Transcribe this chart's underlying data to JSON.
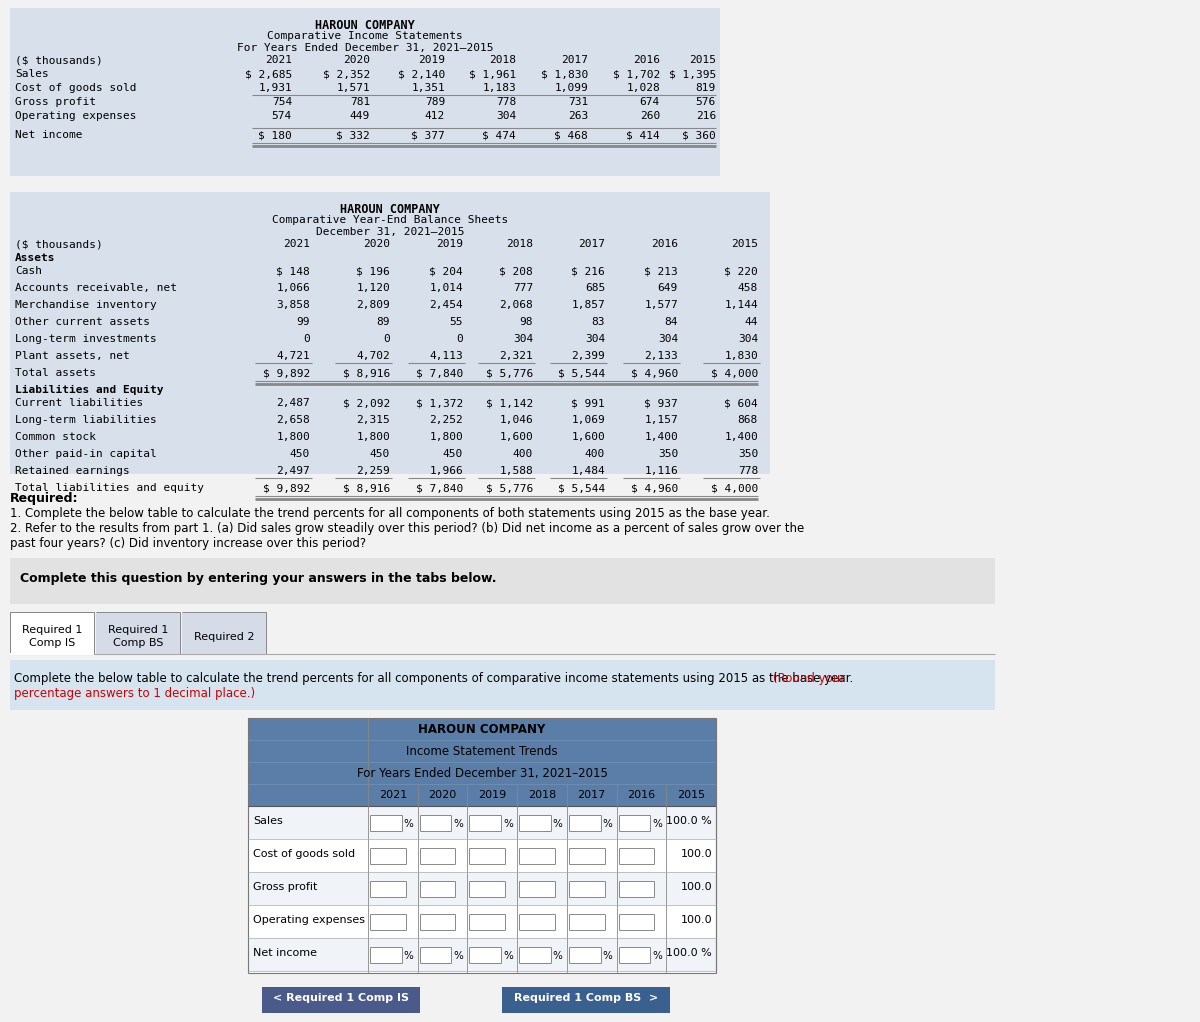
{
  "is_title1": "HAROUN COMPANY",
  "is_title2": "Comparative Income Statements",
  "is_title3": "For Years Ended December 31, 2021–2015",
  "is_header_label": "($ thousands)",
  "is_years": [
    "2021",
    "2020",
    "2019",
    "2018",
    "2017",
    "2016",
    "2015"
  ],
  "is_rows": [
    {
      "label": "Sales",
      "values": [
        "$ 2,685",
        "$ 2,352",
        "$ 2,140",
        "$ 1,961",
        "$ 1,830",
        "$ 1,702",
        "$ 1,395"
      ],
      "line_above": false,
      "double_below": false,
      "dollar": true
    },
    {
      "label": "Cost of goods sold",
      "values": [
        "1,931",
        "1,571",
        "1,351",
        "1,183",
        "1,099",
        "1,028",
        "819"
      ],
      "line_above": false,
      "double_below": false,
      "dollar": false
    },
    {
      "label": "Gross profit",
      "values": [
        "754",
        "781",
        "789",
        "778",
        "731",
        "674",
        "576"
      ],
      "line_above": true,
      "double_below": false,
      "dollar": false
    },
    {
      "label": "Operating expenses",
      "values": [
        "574",
        "449",
        "412",
        "304",
        "263",
        "260",
        "216"
      ],
      "line_above": false,
      "double_below": false,
      "dollar": false
    },
    {
      "label": "Net income",
      "values": [
        "$ 180",
        "$ 332",
        "$ 377",
        "$ 474",
        "$ 468",
        "$ 414",
        "$ 360"
      ],
      "line_above": true,
      "double_below": true,
      "dollar": true
    }
  ],
  "bs_title1": "HAROUN COMPANY",
  "bs_title2": "Comparative Year-End Balance Sheets",
  "bs_title3": "December 31, 2021–2015",
  "bs_header_label": "($ thousands)",
  "bs_years": [
    "2021",
    "2020",
    "2019",
    "2018",
    "2017",
    "2016",
    "2015"
  ],
  "bs_rows": [
    {
      "label": "Assets",
      "values": [
        "",
        "",
        "",
        "",
        "",
        "",
        ""
      ],
      "bold": true,
      "single_below": false,
      "double_below": false
    },
    {
      "label": "Cash",
      "values": [
        "$ 148",
        "$ 196",
        "$ 204",
        "$ 208",
        "$ 216",
        "$ 213",
        "$ 220"
      ],
      "bold": false,
      "single_below": false,
      "double_below": false
    },
    {
      "label": "Accounts receivable, net",
      "values": [
        "1,066",
        "1,120",
        "1,014",
        "777",
        "685",
        "649",
        "458"
      ],
      "bold": false,
      "single_below": false,
      "double_below": false
    },
    {
      "label": "Merchandise inventory",
      "values": [
        "3,858",
        "2,809",
        "2,454",
        "2,068",
        "1,857",
        "1,577",
        "1,144"
      ],
      "bold": false,
      "single_below": false,
      "double_below": false
    },
    {
      "label": "Other current assets",
      "values": [
        "99",
        "89",
        "55",
        "98",
        "83",
        "84",
        "44"
      ],
      "bold": false,
      "single_below": false,
      "double_below": false
    },
    {
      "label": "Long-term investments",
      "values": [
        "0",
        "0",
        "0",
        "304",
        "304",
        "304",
        "304"
      ],
      "bold": false,
      "single_below": false,
      "double_below": false
    },
    {
      "label": "Plant assets, net",
      "values": [
        "4,721",
        "4,702",
        "4,113",
        "2,321",
        "2,399",
        "2,133",
        "1,830"
      ],
      "bold": false,
      "single_below": true,
      "double_below": false
    },
    {
      "label": "Total assets",
      "values": [
        "$ 9,892",
        "$ 8,916",
        "$ 7,840",
        "$ 5,776",
        "$ 5,544",
        "$ 4,960",
        "$ 4,000"
      ],
      "bold": false,
      "single_below": false,
      "double_below": true
    },
    {
      "label": "Liabilities and Equity",
      "values": [
        "",
        "",
        "",
        "",
        "",
        "",
        ""
      ],
      "bold": true,
      "single_below": false,
      "double_below": false
    },
    {
      "label": "Current liabilities",
      "values": [
        "2,487",
        "$ 2,092",
        "$ 1,372",
        "$ 1,142",
        "$ 991",
        "$ 937",
        "$ 604"
      ],
      "bold": false,
      "single_below": false,
      "double_below": false
    },
    {
      "label": "Long-term liabilities",
      "values": [
        "2,658",
        "2,315",
        "2,252",
        "1,046",
        "1,069",
        "1,157",
        "868"
      ],
      "bold": false,
      "single_below": false,
      "double_below": false
    },
    {
      "label": "Common stock",
      "values": [
        "1,800",
        "1,800",
        "1,800",
        "1,600",
        "1,600",
        "1,400",
        "1,400"
      ],
      "bold": false,
      "single_below": false,
      "double_below": false
    },
    {
      "label": "Other paid-in capital",
      "values": [
        "450",
        "450",
        "450",
        "400",
        "400",
        "350",
        "350"
      ],
      "bold": false,
      "single_below": false,
      "double_below": false
    },
    {
      "label": "Retained earnings",
      "values": [
        "2,497",
        "2,259",
        "1,966",
        "1,588",
        "1,484",
        "1,116",
        "778"
      ],
      "bold": false,
      "single_below": true,
      "double_below": false
    },
    {
      "label": "Total liabilities and equity",
      "values": [
        "$ 9,892",
        "$ 8,916",
        "$ 7,840",
        "$ 5,776",
        "$ 5,544",
        "$ 4,960",
        "$ 4,000"
      ],
      "bold": false,
      "single_below": false,
      "double_below": true
    }
  ],
  "trend_title1": "HAROUN COMPANY",
  "trend_title2": "Income Statement Trends",
  "trend_title3": "For Years Ended December 31, 2021–2015",
  "trend_years": [
    "2021",
    "2020",
    "2019",
    "2018",
    "2017",
    "2016",
    "2015"
  ],
  "trend_rows": [
    {
      "label": "Sales",
      "has_pct": true,
      "last_val": "100.0 %"
    },
    {
      "label": "Cost of goods sold",
      "has_pct": false,
      "last_val": "100.0"
    },
    {
      "label": "Gross profit",
      "has_pct": false,
      "last_val": "100.0"
    },
    {
      "label": "Operating expenses",
      "has_pct": false,
      "last_val": "100.0"
    },
    {
      "label": "Net income",
      "has_pct": true,
      "last_val": "100.0 %"
    }
  ],
  "bg_table": "#cdd5e0",
  "bg_light": "#d8e0ec",
  "bg_gray": "#e4e4e4",
  "bg_white": "#ffffff",
  "bg_blue_header": "#5b7ea8",
  "bg_blue_row": "#aab8cc",
  "bg_instruction": "#d6e4f0",
  "line_color": "#888888",
  "text_black": "#000000",
  "text_red": "#cc0000",
  "text_white": "#ffffff",
  "nav_bg": "#4a5a8a"
}
